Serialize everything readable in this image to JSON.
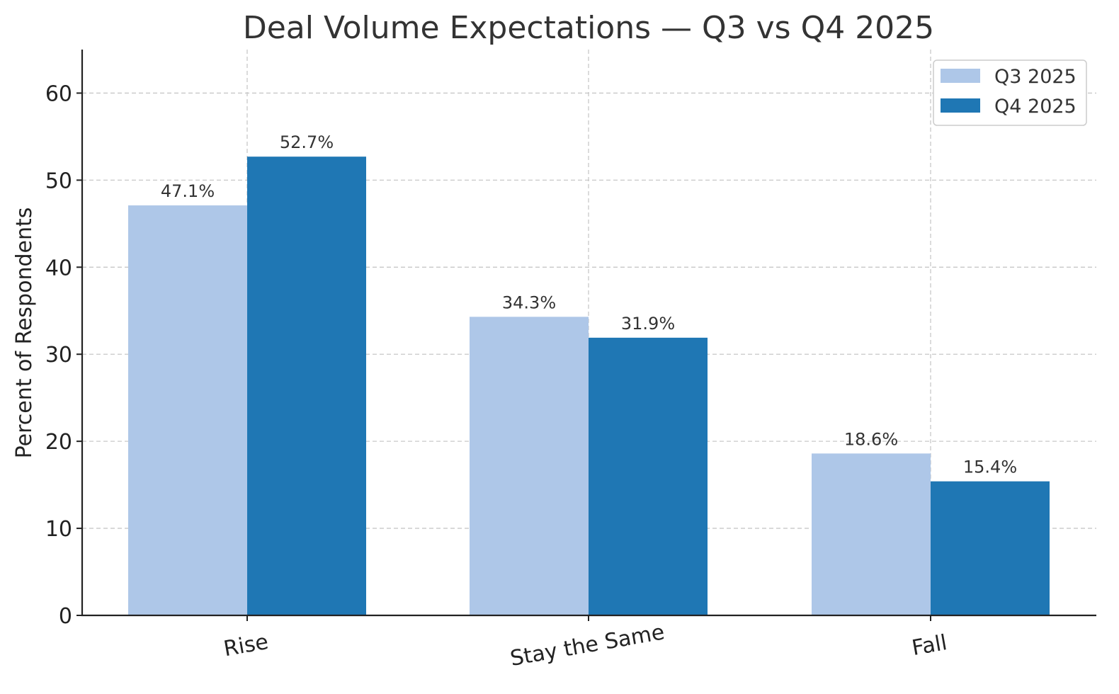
{
  "chart_data": {
    "type": "bar",
    "title": "Deal Volume Expectations — Q3 vs Q4 2025",
    "xlabel": "",
    "ylabel": "Percent of Respondents",
    "categories": [
      "Rise",
      "Stay the Same",
      "Fall"
    ],
    "series": [
      {
        "name": "Q3 2025",
        "values": [
          47.1,
          34.3,
          18.6
        ],
        "color": "#aec7e8",
        "labels": [
          "47.1%",
          "34.3%",
          "18.6%"
        ]
      },
      {
        "name": "Q4 2025",
        "values": [
          52.7,
          31.9,
          15.4
        ],
        "color": "#1f77b4",
        "labels": [
          "52.7%",
          "31.9%",
          "15.4%"
        ]
      }
    ],
    "ylim": [
      0,
      65
    ],
    "yticks": [
      0,
      10,
      20,
      30,
      40,
      50,
      60
    ],
    "grid": true,
    "legend_position": "top-right"
  }
}
